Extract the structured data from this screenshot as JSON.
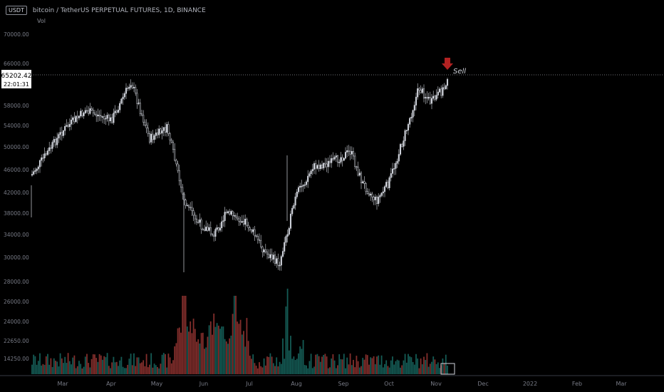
{
  "header": {
    "symbol_badge": "USDT",
    "title": "bitcoin / TetherUS PERPETUAL FUTURES, 1D, BINANCE",
    "volume_label": "Vol"
  },
  "price_scale": {
    "ticks": [
      "70000.00",
      "66000.00",
      "62000.00",
      "58000.00",
      "54000.00",
      "50000.00",
      "46000.00",
      "42000.00",
      "38000.00",
      "34000.00",
      "30000.00",
      "28000.00",
      "26000.00",
      "24000.00",
      "22650.00",
      "14250.00"
    ],
    "current_price": "65202.42",
    "countdown": "22:01:31"
  },
  "time_scale": {
    "ticks": [
      "Mar",
      "Apr",
      "May",
      "Jun",
      "Jul",
      "Aug",
      "Sep",
      "Oct",
      "Nov",
      "Dec",
      "2022",
      "Feb",
      "Mar"
    ]
  },
  "annotation": {
    "label": "Sell",
    "arrow_icon": "down-arrow-icon",
    "color": "#b22222"
  },
  "colors": {
    "up": "#26a69a",
    "down": "#ef5350",
    "candle": "#d1d4dc",
    "background": "#000000"
  },
  "chart_data": {
    "type": "candlestick",
    "x": [
      "Feb 2021",
      "Mar 2021",
      "Apr 2021",
      "May 2021",
      "Jun 2021",
      "Jul 2021",
      "Aug 2021",
      "Sep 2021",
      "Oct 2021",
      "Nov 2021"
    ],
    "close": [
      45000,
      57000,
      58500,
      36500,
      35000,
      41500,
      47200,
      43800,
      61300,
      65202.42
    ],
    "ylim": [
      30000,
      70000
    ],
    "horizontal_line": 65202.42
  }
}
